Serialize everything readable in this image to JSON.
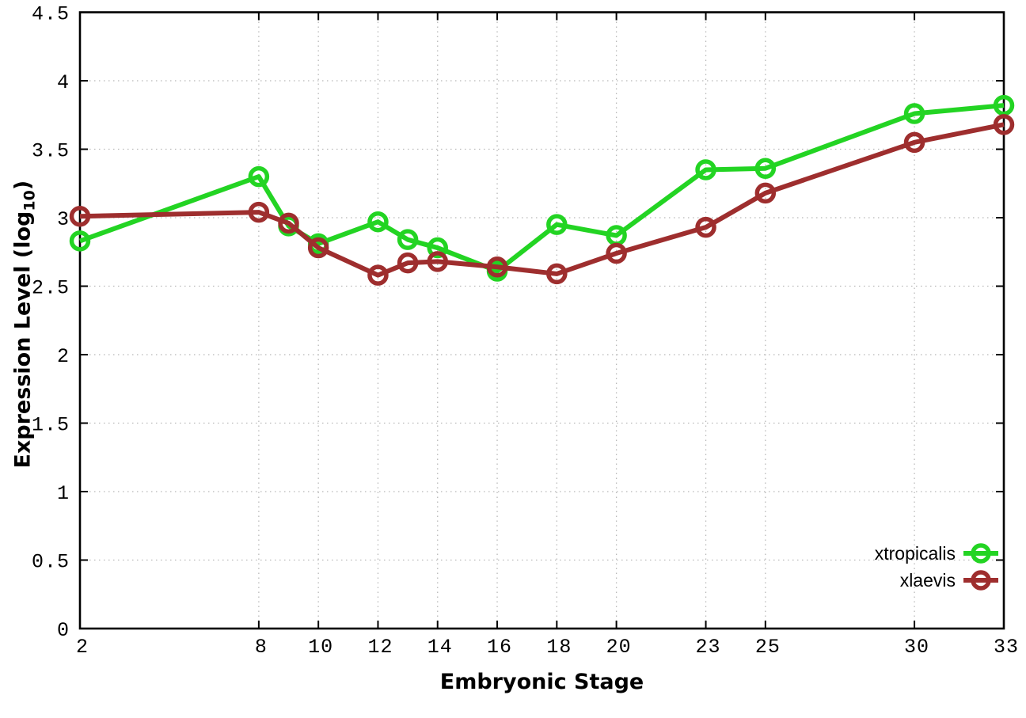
{
  "chart_data": {
    "type": "line",
    "title": "",
    "xlabel": "Embryonic Stage",
    "ylabel": "Expression Level (log10)",
    "ylabel_prefix": "Expression Level (log",
    "ylabel_sub": "10",
    "ylabel_suffix": ")",
    "x": [
      2,
      8,
      9,
      10,
      12,
      13,
      14,
      16,
      18,
      20,
      23,
      25,
      30,
      33
    ],
    "series": [
      {
        "name": "xtropicalis",
        "color": "#23d423",
        "values": [
          2.83,
          3.3,
          2.94,
          2.81,
          2.97,
          2.84,
          2.78,
          2.61,
          2.95,
          2.87,
          3.35,
          3.36,
          3.76,
          3.82
        ]
      },
      {
        "name": "xlaevis",
        "color": "#9e2e2e",
        "values": [
          3.01,
          3.04,
          2.96,
          2.78,
          2.58,
          2.67,
          2.68,
          2.64,
          2.59,
          2.74,
          2.93,
          3.18,
          3.55,
          3.68
        ]
      }
    ],
    "xlim": [
      2,
      33
    ],
    "ylim": [
      0,
      4.5
    ],
    "xticks": [
      2,
      8,
      10,
      12,
      14,
      16,
      18,
      20,
      23,
      25,
      30,
      33
    ],
    "yticks": [
      0,
      0.5,
      1,
      1.5,
      2,
      2.5,
      3,
      3.5,
      4,
      4.5
    ],
    "grid": true,
    "grid_style": "dotted",
    "legend_position": "bottom-right",
    "colors": {
      "background": "#ffffff",
      "axis": "#000000",
      "grid": "#b8b8b8",
      "text": "#000000"
    }
  }
}
